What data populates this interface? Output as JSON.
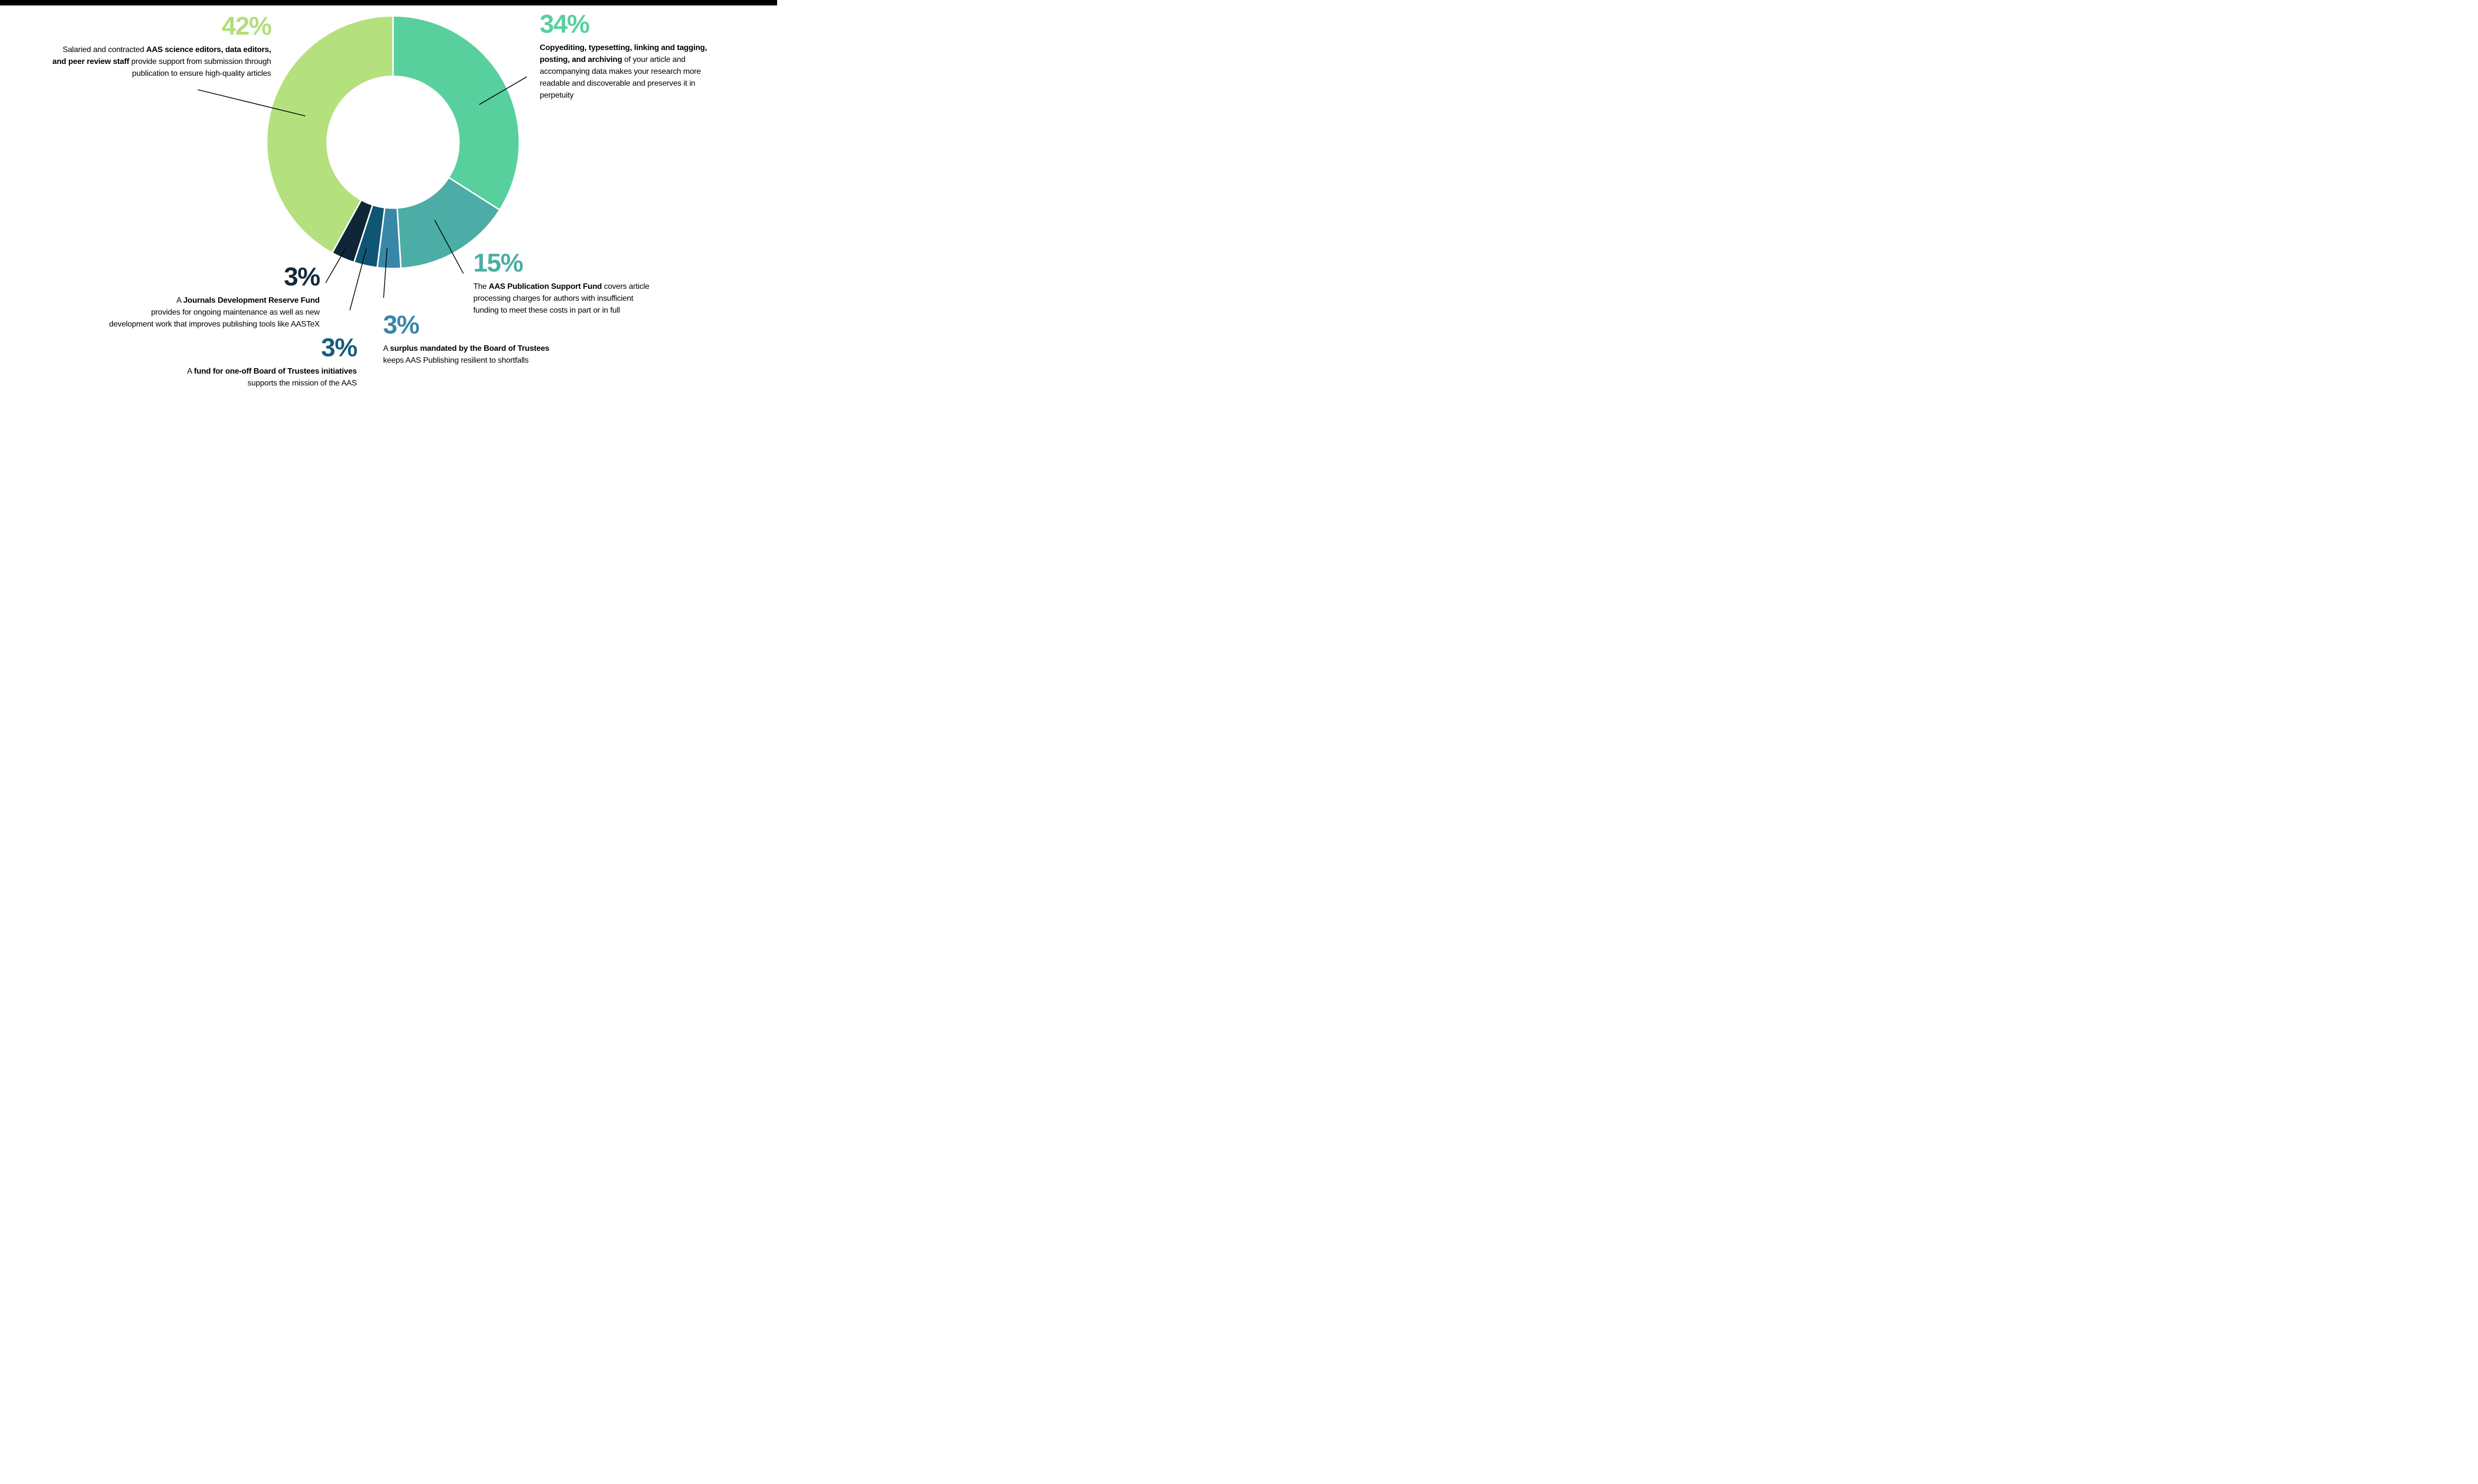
{
  "page": {
    "top_bar_color": "#000000",
    "background": "#ffffff"
  },
  "chart_data": {
    "type": "pie",
    "variant": "donut",
    "labels": [
      "Copyediting, typesetting, linking and tagging, posting, and archiving",
      "AAS Publication Support Fund",
      "Surplus mandated by the Board of Trustees",
      "Fund for one-off Board of Trustees initiatives",
      "Journals Development Reserve Fund",
      "AAS science editors, data editors, and peer review staff"
    ],
    "slice_names": [
      "copyediting-34",
      "publication-support-fund-15",
      "surplus-3",
      "oneoff-fund-3",
      "journals-dev-reserve-3",
      "editors-staff-42"
    ],
    "values": [
      34,
      15,
      3,
      3,
      3,
      42
    ],
    "colors": [
      "#57d09e",
      "#4bada5",
      "#3787a9",
      "#0f5674",
      "#102636",
      "#b5e07e"
    ],
    "start_angle_deg": 0,
    "direction": "clockwise",
    "donut_hole_ratio": 0.52,
    "slice_border_color": "#ffffff",
    "leader_line_color": "#000000"
  },
  "callouts": {
    "c42": {
      "pct": "42%",
      "color": "#b2de7a",
      "lines": [
        {
          "segments": [
            {
              "t": "Salaried and contracted ",
              "b": false
            },
            {
              "t": "AAS science editors, data editors,",
              "b": true
            }
          ]
        },
        {
          "segments": [
            {
              "t": "and peer review staff",
              "b": true
            },
            {
              "t": " provide support from submission through",
              "b": false
            }
          ]
        },
        {
          "segments": [
            {
              "t": "publication to ensure high-quality articles",
              "b": false
            }
          ]
        }
      ]
    },
    "c34": {
      "pct": "34%",
      "color": "#57d09e",
      "lines": [
        {
          "segments": [
            {
              "t": "Copyediting, typesetting, linking and tagging,",
              "b": true
            }
          ]
        },
        {
          "segments": [
            {
              "t": "posting, and archiving",
              "b": true
            },
            {
              "t": " of your article and",
              "b": false
            }
          ]
        },
        {
          "segments": [
            {
              "t": "accompanying data makes your research more",
              "b": false
            }
          ]
        },
        {
          "segments": [
            {
              "t": "readable and discoverable and preserves it in",
              "b": false
            }
          ]
        },
        {
          "segments": [
            {
              "t": "perpetuity",
              "b": false
            }
          ]
        }
      ]
    },
    "c15": {
      "pct": "15%",
      "color": "#4bada5",
      "lines": [
        {
          "segments": [
            {
              "t": "The ",
              "b": false
            },
            {
              "t": "AAS Publication Support Fund",
              "b": true
            },
            {
              "t": " covers article",
              "b": false
            }
          ]
        },
        {
          "segments": [
            {
              "t": "processing charges for authors with insufficient",
              "b": false
            }
          ]
        },
        {
          "segments": [
            {
              "t": "funding to meet these costs in part or in full",
              "b": false
            }
          ]
        }
      ]
    },
    "c3jdrf": {
      "pct": "3%",
      "color": "#13293a",
      "lines": [
        {
          "segments": [
            {
              "t": "A ",
              "b": false
            },
            {
              "t": "Journals Development Reserve Fund",
              "b": true
            }
          ]
        },
        {
          "segments": [
            {
              "t": "provides for ongoing maintenance as well as new",
              "b": false
            }
          ]
        },
        {
          "segments": [
            {
              "t": "development work that improves publishing tools like AASTeX",
              "b": false
            }
          ]
        }
      ]
    },
    "c3oneoff": {
      "pct": "3%",
      "color": "#1a5c7e",
      "lines": [
        {
          "segments": [
            {
              "t": "A ",
              "b": false
            },
            {
              "t": "fund for one-off Board of Trustees initiatives",
              "b": true
            }
          ]
        },
        {
          "segments": [
            {
              "t": "supports the mission of the AAS",
              "b": false
            }
          ]
        }
      ]
    },
    "c3surplus": {
      "pct": "3%",
      "color": "#3787a9",
      "lines": [
        {
          "segments": [
            {
              "t": "A ",
              "b": false
            },
            {
              "t": "surplus mandated by the Board of Trustees",
              "b": true
            }
          ]
        },
        {
          "segments": [
            {
              "t": "keeps AAS Publishing resilient to shortfalls",
              "b": false
            }
          ]
        }
      ]
    }
  }
}
